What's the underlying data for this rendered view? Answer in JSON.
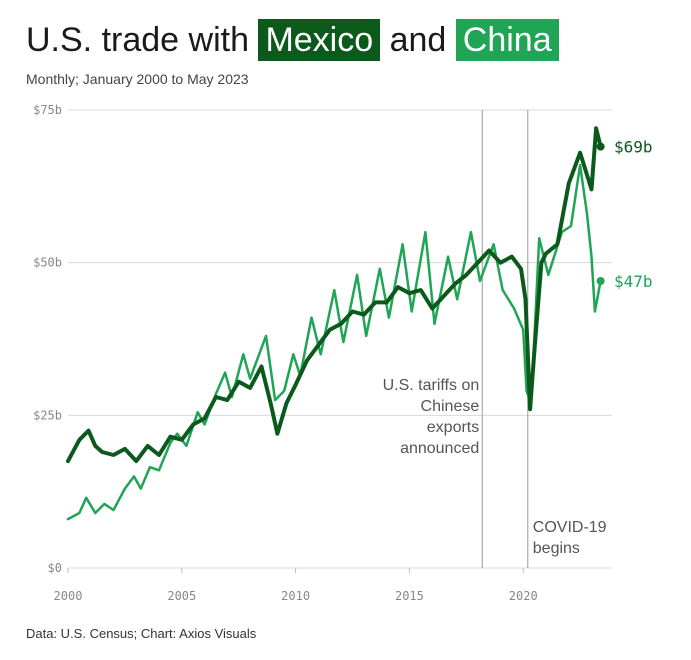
{
  "header": {
    "title_prefix": "U.S. trade with",
    "title_mexico": "Mexico",
    "title_and": "and",
    "title_china": "China",
    "subtitle": "Monthly; January 2000 to May 2023",
    "source": "Data: U.S. Census; Chart: Axios Visuals"
  },
  "colors": {
    "mexico": "#0b5a1c",
    "china": "#1fa555",
    "grid": "#d9d9d9",
    "annotation_line": "#9a9a9a"
  },
  "chart_data": {
    "type": "line",
    "title": "U.S. trade with Mexico and China",
    "subtitle": "Monthly; January 2000 to May 2023",
    "x_unit": "year",
    "xlim": [
      2000,
      2023.9
    ],
    "ylim": [
      0,
      75
    ],
    "y_ticks": [
      {
        "value": 0,
        "label": "$0"
      },
      {
        "value": 25,
        "label": "$25b"
      },
      {
        "value": 50,
        "label": "$50b"
      },
      {
        "value": 75,
        "label": "$75b"
      }
    ],
    "x_ticks": [
      {
        "value": 2000,
        "label": "2000"
      },
      {
        "value": 2005,
        "label": "2005"
      },
      {
        "value": 2010,
        "label": "2010"
      },
      {
        "value": 2015,
        "label": "2015"
      },
      {
        "value": 2020,
        "label": "2020"
      }
    ],
    "grid": true,
    "series": [
      {
        "name": "Mexico",
        "color": "#0b5a1c",
        "end_label": "$69b",
        "end_value": 69,
        "points": [
          [
            2000.0,
            17.5
          ],
          [
            2000.5,
            21
          ],
          [
            2000.9,
            22.5
          ],
          [
            2001.2,
            20
          ],
          [
            2001.5,
            19
          ],
          [
            2002.0,
            18.5
          ],
          [
            2002.5,
            19.5
          ],
          [
            2003.0,
            17.5
          ],
          [
            2003.5,
            20
          ],
          [
            2004.0,
            18.5
          ],
          [
            2004.5,
            21.5
          ],
          [
            2005.0,
            21
          ],
          [
            2005.5,
            23.5
          ],
          [
            2006.0,
            24.5
          ],
          [
            2006.5,
            28
          ],
          [
            2007.0,
            27.5
          ],
          [
            2007.5,
            30.5
          ],
          [
            2008.0,
            29.5
          ],
          [
            2008.5,
            33
          ],
          [
            2008.9,
            27
          ],
          [
            2009.2,
            22
          ],
          [
            2009.6,
            27
          ],
          [
            2010.0,
            30
          ],
          [
            2010.5,
            34
          ],
          [
            2011.0,
            36.5
          ],
          [
            2011.5,
            39
          ],
          [
            2012.0,
            40
          ],
          [
            2012.5,
            42
          ],
          [
            2013.0,
            41.5
          ],
          [
            2013.5,
            43.5
          ],
          [
            2014.0,
            43.5
          ],
          [
            2014.5,
            46
          ],
          [
            2015.0,
            45
          ],
          [
            2015.5,
            45.5
          ],
          [
            2016.0,
            42.5
          ],
          [
            2016.5,
            44.5
          ],
          [
            2017.0,
            46.5
          ],
          [
            2017.5,
            48
          ],
          [
            2018.0,
            50
          ],
          [
            2018.5,
            52
          ],
          [
            2019.0,
            50
          ],
          [
            2019.5,
            51
          ],
          [
            2019.9,
            49
          ],
          [
            2020.1,
            44
          ],
          [
            2020.3,
            26
          ],
          [
            2020.5,
            36
          ],
          [
            2020.8,
            50
          ],
          [
            2021.0,
            51.5
          ],
          [
            2021.5,
            53
          ],
          [
            2022.0,
            63
          ],
          [
            2022.5,
            68
          ],
          [
            2023.0,
            62
          ],
          [
            2023.2,
            72
          ],
          [
            2023.4,
            69
          ]
        ]
      },
      {
        "name": "China",
        "color": "#1fa555",
        "end_label": "$47b",
        "end_value": 47,
        "points": [
          [
            2000.0,
            8
          ],
          [
            2000.5,
            9
          ],
          [
            2000.8,
            11.5
          ],
          [
            2001.2,
            9
          ],
          [
            2001.6,
            10.5
          ],
          [
            2002.0,
            9.5
          ],
          [
            2002.5,
            13
          ],
          [
            2002.9,
            15
          ],
          [
            2003.2,
            13
          ],
          [
            2003.6,
            16.5
          ],
          [
            2004.0,
            16
          ],
          [
            2004.5,
            20.5
          ],
          [
            2004.8,
            22
          ],
          [
            2005.2,
            20
          ],
          [
            2005.7,
            25.5
          ],
          [
            2006.0,
            23.5
          ],
          [
            2006.5,
            28.5
          ],
          [
            2006.9,
            32
          ],
          [
            2007.2,
            28
          ],
          [
            2007.7,
            35
          ],
          [
            2008.0,
            31
          ],
          [
            2008.7,
            38
          ],
          [
            2009.1,
            27.5
          ],
          [
            2009.5,
            29
          ],
          [
            2009.9,
            35
          ],
          [
            2010.2,
            31.5
          ],
          [
            2010.7,
            41
          ],
          [
            2011.1,
            35
          ],
          [
            2011.7,
            45.5
          ],
          [
            2012.1,
            37
          ],
          [
            2012.7,
            48
          ],
          [
            2013.1,
            38
          ],
          [
            2013.7,
            49
          ],
          [
            2014.1,
            41
          ],
          [
            2014.7,
            53
          ],
          [
            2015.1,
            42
          ],
          [
            2015.7,
            55
          ],
          [
            2016.1,
            40
          ],
          [
            2016.7,
            51
          ],
          [
            2017.1,
            44
          ],
          [
            2017.7,
            55
          ],
          [
            2018.1,
            47
          ],
          [
            2018.7,
            53
          ],
          [
            2019.1,
            45.5
          ],
          [
            2019.6,
            42.5
          ],
          [
            2020.0,
            39
          ],
          [
            2020.15,
            29
          ],
          [
            2020.35,
            27
          ],
          [
            2020.7,
            54
          ],
          [
            2021.1,
            48
          ],
          [
            2021.7,
            55
          ],
          [
            2022.1,
            56
          ],
          [
            2022.5,
            66
          ],
          [
            2022.8,
            58
          ],
          [
            2023.0,
            51
          ],
          [
            2023.15,
            42
          ],
          [
            2023.4,
            47
          ]
        ]
      }
    ],
    "annotations": [
      {
        "x": 2018.2,
        "lines": [
          "U.S. tariffs on",
          "Chinese",
          "exports",
          "announced"
        ],
        "anchor": "end"
      },
      {
        "x": 2020.2,
        "lines": [
          "COVID-19",
          "begins"
        ],
        "anchor": "start"
      }
    ]
  }
}
